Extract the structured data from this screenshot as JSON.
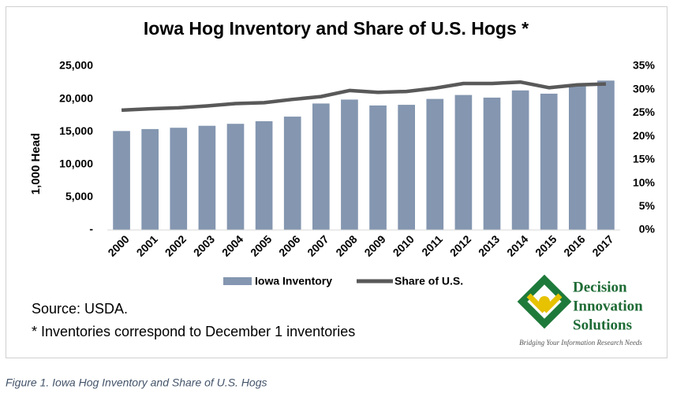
{
  "chart_data": {
    "type": "bar_line",
    "title": "Iowa Hog Inventory and Share of U.S. Hogs *",
    "y_label": "1,000 Head",
    "categories": [
      "2000",
      "2001",
      "2002",
      "2003",
      "2004",
      "2005",
      "2006",
      "2007",
      "2008",
      "2009",
      "2010",
      "2011",
      "2012",
      "2013",
      "2014",
      "2015",
      "2016",
      "2017"
    ],
    "series": [
      {
        "name": "Iowa Inventory",
        "type": "bar",
        "color": "#8496b0",
        "values": [
          15100,
          15400,
          15600,
          15900,
          16200,
          16600,
          17300,
          19300,
          19900,
          19000,
          19100,
          20000,
          20600,
          20200,
          21300,
          20800,
          22000,
          22800
        ]
      },
      {
        "name": "Share of U.S.",
        "type": "line",
        "axis": "y2",
        "color": "#595959",
        "values": [
          25.6,
          25.9,
          26.1,
          26.5,
          27.0,
          27.2,
          27.9,
          28.5,
          29.8,
          29.4,
          29.6,
          30.3,
          31.3,
          31.3,
          31.6,
          30.4,
          31.0,
          31.2
        ]
      }
    ],
    "ylim": [
      0,
      25000
    ],
    "yticks": [
      {
        "value": 0,
        "label": "-"
      },
      {
        "value": 5000,
        "label": "5,000"
      },
      {
        "value": 10000,
        "label": "10,000"
      },
      {
        "value": 15000,
        "label": "15,000"
      },
      {
        "value": 20000,
        "label": "20,000"
      },
      {
        "value": 25000,
        "label": "25,000"
      }
    ],
    "y2lim": [
      0,
      35
    ],
    "y2ticks": [
      {
        "value": 0,
        "label": "0%"
      },
      {
        "value": 5,
        "label": "5%"
      },
      {
        "value": 10,
        "label": "10%"
      },
      {
        "value": 15,
        "label": "15%"
      },
      {
        "value": 20,
        "label": "20%"
      },
      {
        "value": 25,
        "label": "25%"
      },
      {
        "value": 30,
        "label": "30%"
      },
      {
        "value": 35,
        "label": "35%"
      }
    ],
    "grid": false,
    "legend": "bottom"
  },
  "notes": [
    "Source: USDA.",
    "* Inventories correspond to December 1 inventories"
  ],
  "logo": {
    "lines": [
      "Decision",
      "Innovation",
      "Solutions"
    ],
    "tagline": "Bridging Your Information Research Needs"
  },
  "caption": "Figure 1. Iowa Hog Inventory and Share of U.S. Hogs"
}
